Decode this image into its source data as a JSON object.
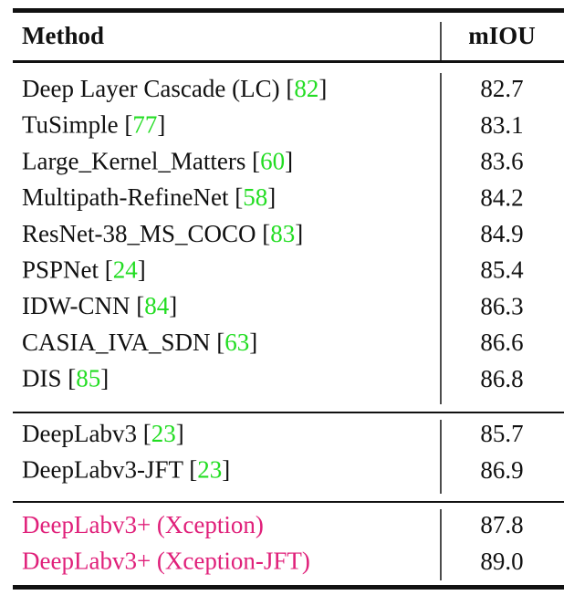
{
  "table": {
    "header": [
      "Method",
      "mIOU"
    ],
    "groups": [
      {
        "rows": [
          {
            "method": "Deep Layer Cascade (LC)",
            "cite": {
              "open": "[",
              "number": "82",
              "close": "]"
            },
            "miou": "82.7"
          },
          {
            "method": "TuSimple",
            "cite": {
              "open": "[",
              "number": "77",
              "close": "]"
            },
            "miou": "83.1"
          },
          {
            "method": "Large_Kernel_Matters",
            "cite": {
              "open": "[",
              "number": "60",
              "close": "]"
            },
            "miou": "83.6"
          },
          {
            "method": "Multipath-RefineNet",
            "cite": {
              "open": "[",
              "number": "58",
              "close": "]"
            },
            "miou": "84.2"
          },
          {
            "method": "ResNet-38_MS_COCO",
            "cite": {
              "open": "[",
              "number": "83",
              "close": "]"
            },
            "miou": "84.9"
          },
          {
            "method": "PSPNet",
            "cite": {
              "open": "[",
              "number": "24",
              "close": "]"
            },
            "miou": "85.4"
          },
          {
            "method": "IDW-CNN",
            "cite": {
              "open": "[",
              "number": "84",
              "close": "]"
            },
            "miou": "86.3"
          },
          {
            "method": "CASIA_IVA_SDN",
            "cite": {
              "open": "[",
              "number": "63",
              "close": "]"
            },
            "miou": "86.6"
          },
          {
            "method": "DIS",
            "cite": {
              "open": "[",
              "number": "85",
              "close": "]"
            },
            "miou": "86.8"
          }
        ]
      },
      {
        "rows": [
          {
            "method": "DeepLabv3",
            "cite": {
              "open": "[",
              "number": "23",
              "close": "]"
            },
            "miou": "85.7"
          },
          {
            "method": "DeepLabv3-JFT",
            "cite": {
              "open": "[",
              "number": "23",
              "close": "]"
            },
            "miou": "86.9"
          }
        ]
      },
      {
        "highlight": true,
        "rows": [
          {
            "method": "DeepLabv3+ (Xception)",
            "miou": "87.8"
          },
          {
            "method": "DeepLabv3+ (Xception-JFT)",
            "miou": "89.0"
          }
        ]
      }
    ]
  }
}
